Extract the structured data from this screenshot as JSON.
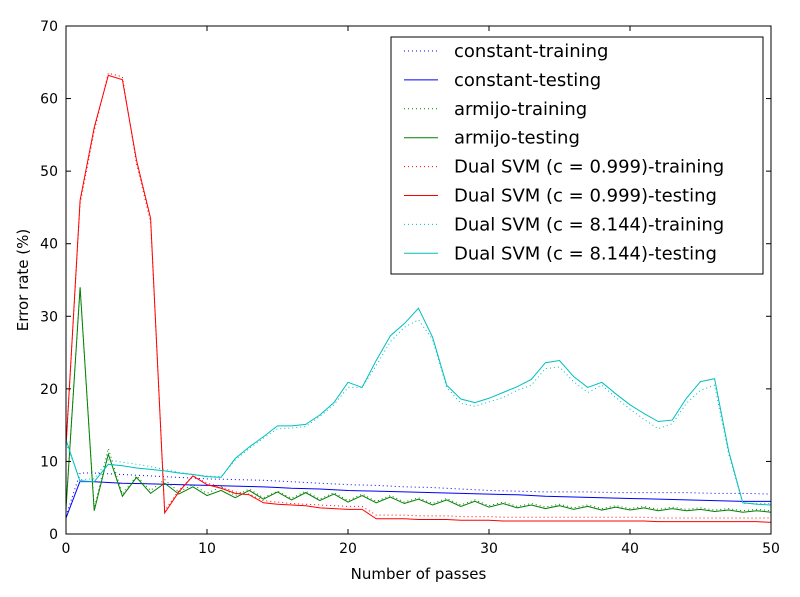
{
  "chart_data": {
    "type": "line",
    "xlabel": "Number of passes",
    "ylabel": "Error rate (%)",
    "xlim": [
      0,
      50
    ],
    "ylim": [
      0,
      70
    ],
    "xticks": [
      "0",
      "10",
      "20",
      "30",
      "40",
      "50"
    ],
    "yticks": [
      "0",
      "10",
      "20",
      "30",
      "40",
      "50",
      "60",
      "70"
    ],
    "grid": false,
    "legend_position": "top-right",
    "series": [
      {
        "name": "constant-training",
        "color": "#0000ff",
        "style": "dotted",
        "x": [
          0,
          1,
          2,
          3,
          4,
          5,
          6,
          7,
          8,
          9,
          10,
          11,
          12,
          13,
          14,
          15,
          16,
          17,
          18,
          19,
          20,
          21,
          22,
          23,
          24,
          25,
          26,
          27,
          28,
          29,
          30,
          31,
          32,
          33,
          34,
          35,
          36,
          37,
          38,
          39,
          40,
          41,
          42,
          43,
          44,
          45,
          46,
          47,
          48,
          49,
          50
        ],
        "y": [
          2.5,
          8.4,
          8.4,
          8.3,
          8.2,
          8.1,
          8.0,
          7.9,
          7.8,
          7.7,
          7.6,
          7.55,
          7.5,
          7.45,
          7.4,
          7.3,
          7.2,
          7.1,
          7.0,
          6.9,
          6.8,
          6.75,
          6.7,
          6.6,
          6.5,
          6.45,
          6.4,
          6.3,
          6.2,
          6.1,
          6.0,
          5.95,
          5.9,
          5.85,
          5.8,
          5.8,
          5.8,
          5.8,
          5.75,
          5.7,
          5.7,
          5.7,
          5.7,
          5.7,
          5.7,
          5.65,
          5.6,
          5.6,
          5.6,
          5.55,
          5.5
        ]
      },
      {
        "name": "constant-testing",
        "color": "#0000ff",
        "style": "solid",
        "x": [
          0,
          1,
          2,
          3,
          4,
          5,
          6,
          7,
          8,
          9,
          10,
          11,
          12,
          13,
          14,
          15,
          16,
          17,
          18,
          19,
          20,
          21,
          22,
          23,
          24,
          25,
          26,
          27,
          28,
          29,
          30,
          31,
          32,
          33,
          34,
          35,
          36,
          37,
          38,
          39,
          40,
          41,
          42,
          43,
          44,
          45,
          46,
          47,
          48,
          49,
          50
        ],
        "y": [
          2.2,
          7.3,
          7.2,
          7.1,
          7.0,
          6.95,
          6.9,
          6.85,
          6.8,
          6.75,
          6.7,
          6.65,
          6.6,
          6.55,
          6.5,
          6.4,
          6.3,
          6.25,
          6.2,
          6.1,
          6.0,
          5.95,
          5.9,
          5.85,
          5.8,
          5.75,
          5.7,
          5.65,
          5.6,
          5.55,
          5.5,
          5.45,
          5.4,
          5.3,
          5.2,
          5.15,
          5.1,
          5.05,
          5.0,
          4.95,
          4.9,
          4.85,
          4.8,
          4.75,
          4.7,
          4.65,
          4.6,
          4.55,
          4.5,
          4.5,
          4.5
        ]
      },
      {
        "name": "armijo-training",
        "color": "#008000",
        "style": "dotted",
        "x": [
          0,
          1,
          2,
          3,
          4,
          5,
          6,
          7,
          8,
          9,
          10,
          11,
          12,
          13,
          14,
          15,
          16,
          17,
          18,
          19,
          20,
          21,
          22,
          23,
          24,
          25,
          26,
          27,
          28,
          29,
          30,
          31,
          32,
          33,
          34,
          35,
          36,
          37,
          38,
          39,
          40,
          41,
          42,
          43,
          44,
          45,
          46,
          47,
          48,
          49,
          50
        ],
        "y": [
          3.8,
          34.0,
          3.5,
          11.8,
          5.5,
          8.0,
          6.0,
          7.5,
          5.8,
          6.8,
          5.6,
          6.5,
          5.3,
          6.2,
          5.0,
          5.9,
          4.9,
          5.9,
          4.8,
          5.7,
          4.6,
          5.5,
          4.5,
          5.3,
          4.4,
          5.0,
          4.2,
          4.9,
          4.0,
          4.7,
          3.9,
          4.4,
          3.8,
          4.2,
          3.7,
          4.1,
          3.6,
          4.0,
          3.5,
          3.9,
          3.5,
          3.8,
          3.4,
          3.7,
          3.4,
          3.6,
          3.3,
          3.5,
          3.2,
          3.4,
          3.2
        ]
      },
      {
        "name": "armijo-testing",
        "color": "#008000",
        "style": "solid",
        "x": [
          0,
          1,
          2,
          3,
          4,
          5,
          6,
          7,
          8,
          9,
          10,
          11,
          12,
          13,
          14,
          15,
          16,
          17,
          18,
          19,
          20,
          21,
          22,
          23,
          24,
          25,
          26,
          27,
          28,
          29,
          30,
          31,
          32,
          33,
          34,
          35,
          36,
          37,
          38,
          39,
          40,
          41,
          42,
          43,
          44,
          45,
          46,
          47,
          48,
          49,
          50
        ],
        "y": [
          3.5,
          34.0,
          3.2,
          11.0,
          5.2,
          7.8,
          5.6,
          7.0,
          5.5,
          6.5,
          5.3,
          6.0,
          5.0,
          6.0,
          4.8,
          5.8,
          4.7,
          5.7,
          4.6,
          5.5,
          4.4,
          5.3,
          4.3,
          5.1,
          4.2,
          4.8,
          4.0,
          4.7,
          3.8,
          4.5,
          3.7,
          4.2,
          3.6,
          4.0,
          3.5,
          3.9,
          3.4,
          3.8,
          3.3,
          3.7,
          3.3,
          3.6,
          3.2,
          3.5,
          3.2,
          3.4,
          3.1,
          3.3,
          3.0,
          3.2,
          3.0
        ]
      },
      {
        "name": "Dual SVM (c = 0.999)-training",
        "color": "#ff0000",
        "style": "dotted",
        "x": [
          0,
          1,
          2,
          3,
          4,
          5,
          6,
          7,
          8,
          9,
          10,
          11,
          12,
          13,
          14,
          15,
          16,
          17,
          18,
          19,
          20,
          21,
          22,
          23,
          24,
          25,
          26,
          27,
          28,
          29,
          30,
          31,
          32,
          33,
          34,
          35,
          36,
          37,
          38,
          39,
          40,
          41,
          42,
          43,
          44,
          45,
          46,
          47,
          48,
          49,
          50
        ],
        "y": [
          12.0,
          45.5,
          55.5,
          63.5,
          63.0,
          51.0,
          43.0,
          3.2,
          6.0,
          8.0,
          7.0,
          6.5,
          5.8,
          5.5,
          4.6,
          4.4,
          4.2,
          4.1,
          4.0,
          3.9,
          3.8,
          3.8,
          2.6,
          2.6,
          2.6,
          2.5,
          2.5,
          2.5,
          2.4,
          2.4,
          2.4,
          2.3,
          2.3,
          2.3,
          2.3,
          2.3,
          2.3,
          2.3,
          2.3,
          2.3,
          2.3,
          2.3,
          2.2,
          2.2,
          2.2,
          2.2,
          2.2,
          2.2,
          2.2,
          2.2,
          2.2
        ]
      },
      {
        "name": "Dual SVM (c = 0.999)-testing",
        "color": "#ff0000",
        "style": "solid",
        "x": [
          0,
          1,
          2,
          3,
          4,
          5,
          6,
          7,
          8,
          9,
          10,
          11,
          12,
          13,
          14,
          15,
          16,
          17,
          18,
          19,
          20,
          21,
          22,
          23,
          24,
          25,
          26,
          27,
          28,
          29,
          30,
          31,
          32,
          33,
          34,
          35,
          36,
          37,
          38,
          39,
          40,
          41,
          42,
          43,
          44,
          45,
          46,
          47,
          48,
          49,
          50
        ],
        "y": [
          12.0,
          46.0,
          56.0,
          63.2,
          62.6,
          51.5,
          43.5,
          2.9,
          5.8,
          8.0,
          6.8,
          6.3,
          5.6,
          5.4,
          4.3,
          4.1,
          4.0,
          3.9,
          3.6,
          3.5,
          3.4,
          3.4,
          2.1,
          2.1,
          2.1,
          2.0,
          2.0,
          2.0,
          1.9,
          1.9,
          1.9,
          1.8,
          1.8,
          1.8,
          1.8,
          1.8,
          1.8,
          1.8,
          1.8,
          1.8,
          1.8,
          1.8,
          1.7,
          1.7,
          1.7,
          1.7,
          1.7,
          1.7,
          1.7,
          1.7,
          1.6
        ]
      },
      {
        "name": "Dual SVM (c = 8.144)-training",
        "color": "#00bfbf",
        "style": "dotted",
        "x": [
          0,
          1,
          2,
          3,
          4,
          5,
          6,
          7,
          8,
          9,
          10,
          11,
          12,
          13,
          14,
          15,
          16,
          17,
          18,
          19,
          20,
          21,
          22,
          23,
          24,
          25,
          26,
          27,
          28,
          29,
          30,
          31,
          32,
          33,
          34,
          35,
          36,
          37,
          38,
          39,
          40,
          41,
          42,
          43,
          44,
          45,
          46,
          47,
          48,
          49,
          50
        ],
        "y": [
          12.5,
          7.5,
          7.6,
          10.2,
          9.9,
          9.6,
          9.3,
          8.9,
          8.5,
          8.2,
          8.0,
          7.9,
          10.2,
          11.8,
          13.2,
          14.5,
          14.6,
          14.8,
          16.2,
          17.8,
          20.2,
          20.2,
          23.2,
          26.5,
          28.5,
          29.5,
          26.8,
          20.2,
          18.0,
          17.6,
          18.2,
          18.8,
          19.8,
          20.5,
          22.8,
          23.0,
          21.0,
          19.5,
          20.5,
          18.8,
          17.2,
          15.8,
          14.5,
          15.2,
          18.0,
          19.8,
          20.5,
          11.0,
          4.2,
          4.2,
          4.2
        ]
      },
      {
        "name": "Dual SVM (c = 8.144)-testing",
        "color": "#00bfbf",
        "style": "solid",
        "x": [
          0,
          1,
          2,
          3,
          4,
          5,
          6,
          7,
          8,
          9,
          10,
          11,
          12,
          13,
          14,
          15,
          16,
          17,
          18,
          19,
          20,
          21,
          22,
          23,
          24,
          25,
          26,
          27,
          28,
          29,
          30,
          31,
          32,
          33,
          34,
          35,
          36,
          37,
          38,
          39,
          40,
          41,
          42,
          43,
          44,
          45,
          46,
          47,
          48,
          49,
          50
        ],
        "y": [
          13.0,
          7.2,
          7.2,
          9.6,
          9.4,
          9.1,
          8.9,
          8.7,
          8.4,
          8.2,
          7.9,
          7.8,
          10.4,
          12.0,
          13.4,
          14.9,
          14.9,
          15.1,
          16.4,
          18.1,
          20.9,
          20.2,
          23.9,
          27.3,
          29.0,
          31.1,
          27.1,
          20.5,
          18.6,
          18.1,
          18.7,
          19.5,
          20.3,
          21.3,
          23.6,
          23.9,
          21.7,
          20.2,
          20.9,
          19.3,
          17.8,
          16.6,
          15.5,
          15.7,
          18.7,
          21.0,
          21.4,
          11.4,
          4.3,
          4.1,
          4.0
        ]
      }
    ]
  }
}
